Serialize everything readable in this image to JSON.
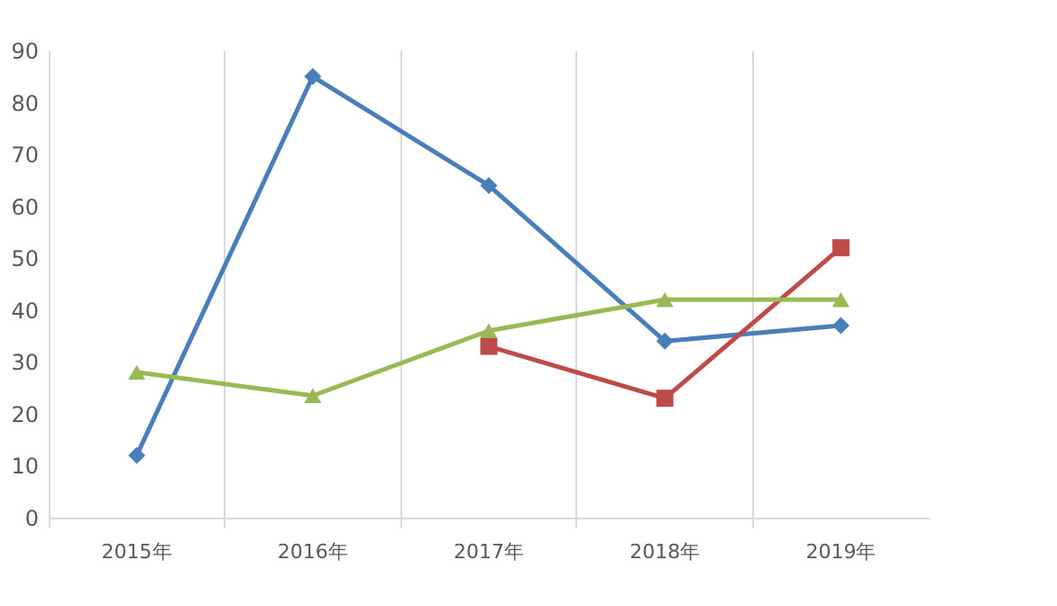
{
  "chart_data": {
    "type": "line",
    "categories": [
      "2015年",
      "2016年",
      "2017年",
      "2018年",
      "2019年"
    ],
    "series": [
      {
        "color": "#4a7ebb",
        "marker": "diamond",
        "values": [
          12,
          85,
          64,
          34,
          37
        ]
      },
      {
        "color": "#be4b48",
        "marker": "square",
        "values": [
          null,
          null,
          33,
          23,
          52
        ]
      },
      {
        "color": "#98b954",
        "marker": "triangle",
        "values": [
          28,
          23.5,
          36,
          42,
          42
        ]
      }
    ],
    "ylim": [
      0,
      90
    ],
    "yticks": [
      0,
      10,
      20,
      30,
      40,
      50,
      60,
      70,
      80,
      90
    ],
    "grid": "x",
    "legend": false,
    "line_style": "solid"
  }
}
